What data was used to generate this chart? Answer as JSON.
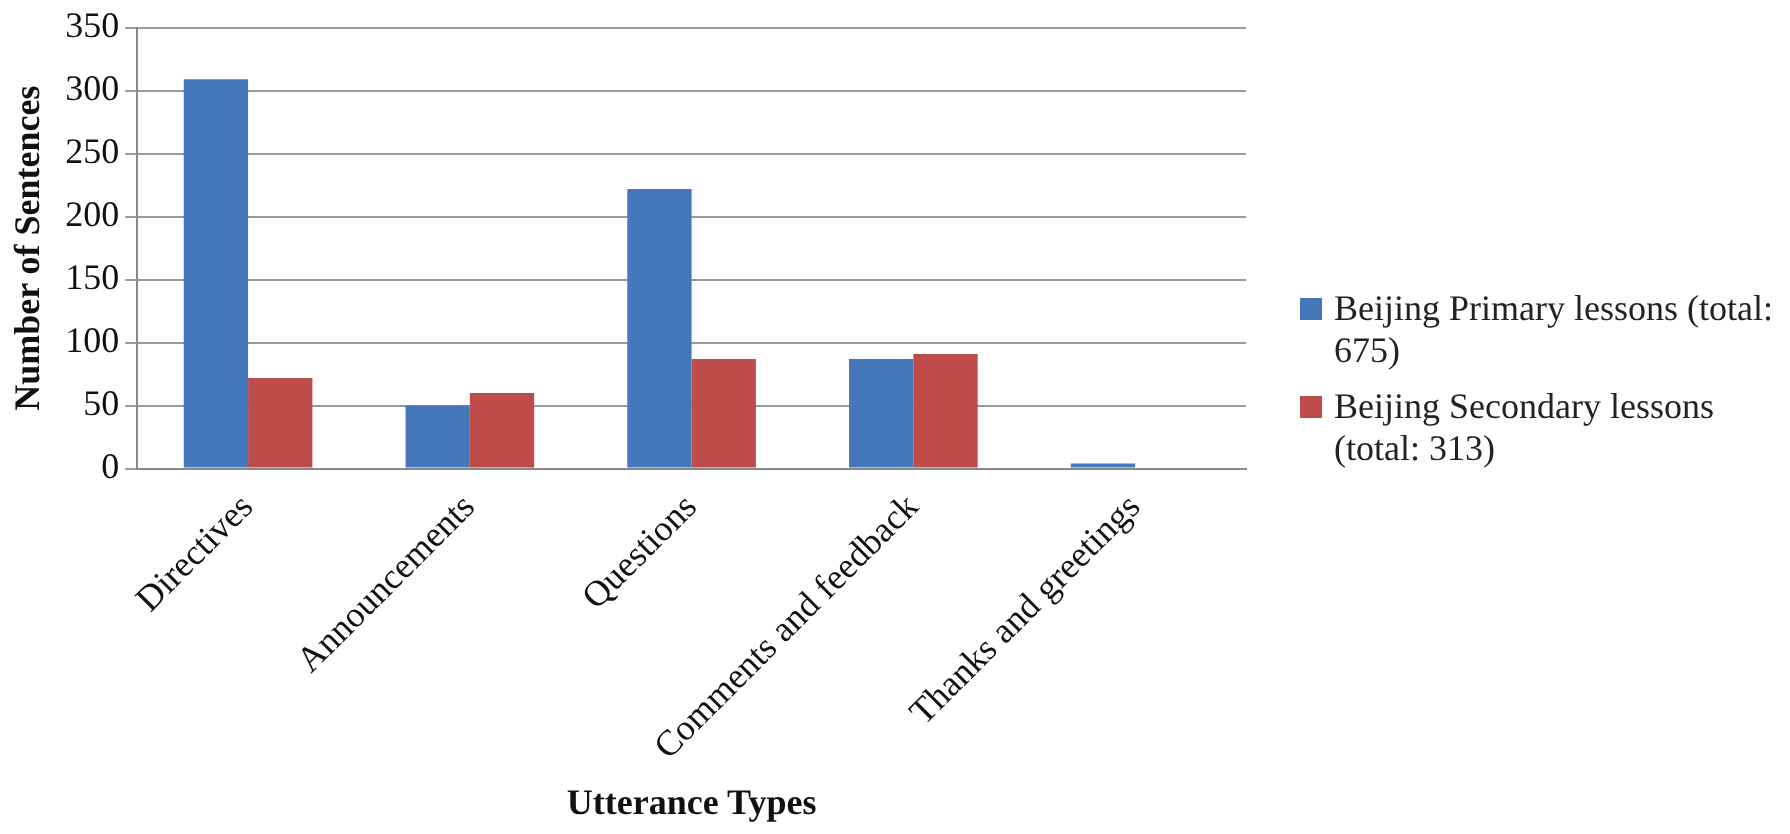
{
  "chart_data": {
    "type": "bar",
    "xlabel": "Utterance Types",
    "ylabel": "Number of Sentences",
    "categories": [
      "Directives",
      "Announcements",
      "Questions",
      "Comments and feedback",
      "Thanks and greetings"
    ],
    "series": [
      {
        "name": "Beijing Primary lessons (total: 675)",
        "color": "#4478bb",
        "values": [
          309,
          50,
          222,
          87,
          4
        ]
      },
      {
        "name": "Beijing Secondary lessons (total: 313)",
        "color": "#bd4c4a",
        "values": [
          72,
          60,
          87,
          91,
          0
        ]
      }
    ],
    "ylim": [
      0,
      350
    ],
    "yticks": [
      0,
      50,
      100,
      150,
      200,
      250,
      300,
      350
    ],
    "grid": "y",
    "legend": "right"
  }
}
